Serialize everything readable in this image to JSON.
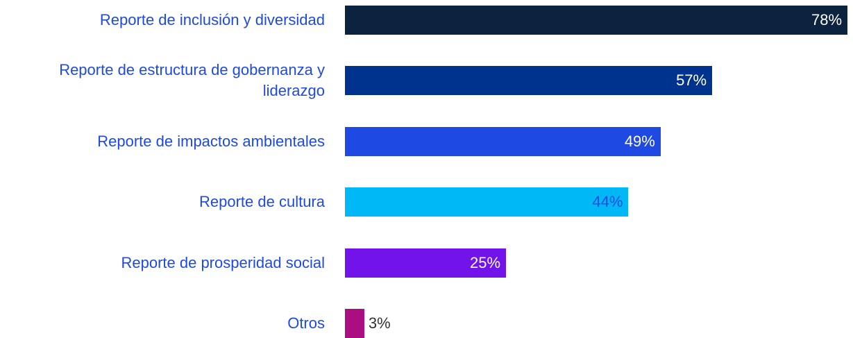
{
  "chart_data": {
    "type": "bar",
    "orientation": "horizontal",
    "categories": [
      "Reporte de inclusión y diversidad",
      "Reporte de estructura de gobernanza y liderazgo",
      "Reporte de impactos ambientales",
      "Reporte de cultura",
      "Reporte de prosperidad social",
      "Otros"
    ],
    "values": [
      78,
      57,
      49,
      44,
      25,
      3
    ],
    "value_labels": [
      "78%",
      "57%",
      "49%",
      "44%",
      "25%",
      "3%"
    ],
    "colors": [
      "#0c233f",
      "#00338d",
      "#1e49e2",
      "#00b8f5",
      "#7213ea",
      "#ab0d82"
    ],
    "value_label_colors": [
      "#ffffff",
      "#ffffff",
      "#ffffff",
      "#1e49e2",
      "#ffffff",
      "#333333"
    ]
  }
}
